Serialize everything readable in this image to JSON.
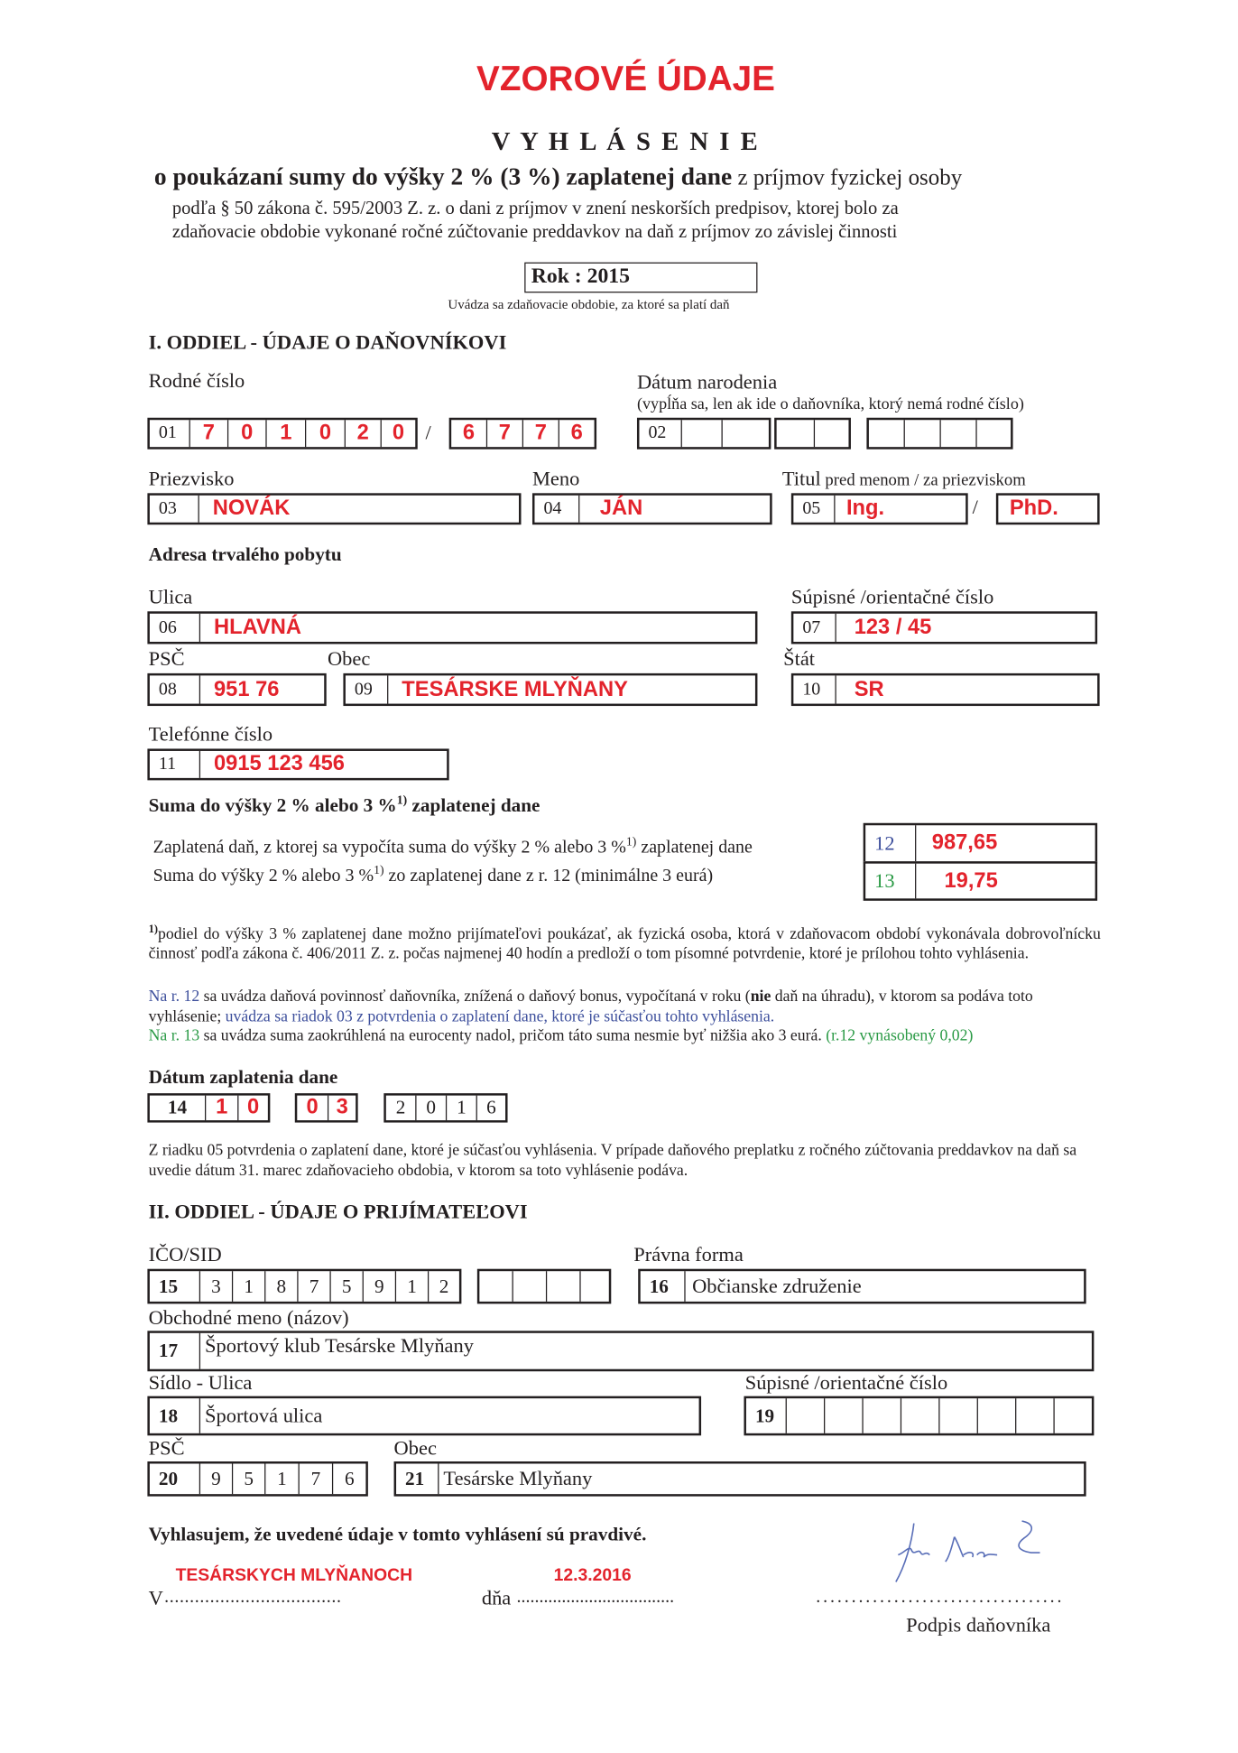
{
  "header": {
    "watermark": "VZOROVÉ ÚDAJE",
    "title": "V Y H L Á S E N I E",
    "subtitle_bold": "o poukázaní sumy do výšky 2 % (3 %) zaplatenej dane",
    "subtitle_rest": " z príjmov fyzickej osoby",
    "legal_1": "podľa § 50 zákona č. 595/2003 Z. z. o dani z príjmov v znení neskorších predpisov, ktorej bolo za",
    "legal_2": "zdaňovacie obdobie vykonané ročné zúčtovanie preddavkov na daň z príjmov zo závislej činnosti",
    "year": "Rok : 2015",
    "year_caption": "Uvádza sa zdaňovacie obdobie, za ktoré sa platí daň"
  },
  "section1": {
    "heading": "I. ODDIEL - ÚDAJE O DAŇOVNÍKOVI",
    "rodne_cislo_label": "Rodné číslo",
    "datum_label": "Dátum  narodenia",
    "datum_note": "(vypĺňa sa, len ak ide o daňovníka, ktorý nemá  rodné číslo)",
    "f01": {
      "num": "01",
      "digits": [
        "7",
        "0",
        "1",
        "0",
        "2",
        "0"
      ],
      "digits2": [
        "6",
        "7",
        "7",
        "6"
      ],
      "slash": "/"
    },
    "f02": {
      "num": "02"
    },
    "priezvisko_label": "Priezvisko",
    "meno_label": "Meno",
    "titul_label": "Titul",
    "titul_note": " pred menom / za priezviskom",
    "f03": {
      "num": "03",
      "value": "NOVÁK"
    },
    "f04": {
      "num": "04",
      "value": "JÁN"
    },
    "f05": {
      "num": "05",
      "value": "Ing.",
      "slash": "/",
      "after": "PhD."
    },
    "address_heading": "Adresa trvalého pobytu",
    "ulica_label": "Ulica",
    "supisne_label": "Súpisné /orientačné číslo",
    "f06": {
      "num": "06",
      "value": "HLAVNÁ"
    },
    "f07": {
      "num": "07",
      "value": "123 / 45"
    },
    "psc_label": "PSČ",
    "obec_label": "Obec",
    "stat_label": "Štát",
    "f08": {
      "num": "08",
      "value": "951 76"
    },
    "f09": {
      "num": "09",
      "value": "TESÁRSKE  MLYŇANY"
    },
    "f10": {
      "num": "10",
      "value": "SR"
    },
    "telefon_label": "Telefónne číslo",
    "f11": {
      "num": "11",
      "value": "0915 123 456"
    },
    "suma_heading": "Suma do výšky 2 % alebo 3 %",
    "sup": "1)",
    "suma_heading_end": " zaplatenej dane",
    "r12_text": "Zaplatená daň, z ktorej sa vypočíta suma do výšky 2 % alebo 3 %",
    "r12_text_end": " zaplatenej dane",
    "r12_num": "12",
    "r12_value": "987,65",
    "r13_text": "Suma do výšky 2 % alebo 3 %",
    "r13_text_end": " zo zaplatenej dane z r. 12 (minimálne 3 eurá)",
    "r13_num": "13",
    "r13_value": "19,75",
    "footnote": "podiel do výšky 3 % zaplatenej dane možno prijímateľovi poukázať, ak fyzická osoba, ktorá v zdaňovacom období vykonávala dobrovoľnícku činnosť podľa zákona č. 406/2011 Z. z. počas najmenej 40 hodín a predloží o tom písomné potvrdenie, ktoré je prílohou tohto vyhlásenia.",
    "note12_a": "Na r. 12",
    "note12_b": " sa uvádza daňová povinnosť daňovníka, znížená o daňový bonus, vypočítaná v roku (",
    "note12_bold": "nie",
    "note12_c": " daň na úhradu), v ktorom sa podáva toto vyhlásenie; ",
    "note12_d": "uvádza sa riadok 03 z potvrdenia o zaplatení dane, ktoré je súčasťou tohto vyhlásenia.",
    "note13_a": "Na r. 13",
    "note13_b": " sa uvádza suma zaokrúhlená na eurocenty nadol, pričom táto suma nesmie byť nižšia ako 3 eurá. ",
    "note13_c": "(r.12 vynásobený 0,02)",
    "datum_zaplatenia_heading": "Dátum zaplatenia dane",
    "f14": {
      "num": "14",
      "day": [
        "1",
        "0"
      ],
      "month": [
        "0",
        "3"
      ],
      "year": [
        "2",
        "0",
        "1",
        "6"
      ]
    },
    "datum_note_text": "Z riadku 05 potvrdenia o zaplatení dane, ktoré je súčasťou vyhlásenia. V prípade daňového preplatku z ročného zúčtovania preddavkov na daň sa uvedie dátum 31. marec zdaňovacieho obdobia, v ktorom sa toto vyhlásenie podáva."
  },
  "section2": {
    "heading": "II. ODDIEL - ÚDAJE O PRIJÍMATEĽOVI",
    "ico_label": "IČO/SID",
    "pravna_label": "Právna forma",
    "f15": {
      "num": "15",
      "digits": [
        "3",
        "1",
        "8",
        "7",
        "5",
        "9",
        "1",
        "2"
      ]
    },
    "f16": {
      "num": "16",
      "value": "Občianske združenie"
    },
    "obchodne_label": "Obchodné meno (názov)",
    "f17": {
      "num": "17",
      "value": "Športový klub Tesárske Mlyňany"
    },
    "sidlo_label": "Sídlo - Ulica",
    "supisne_label": "Súpisné /orientačné číslo",
    "f18": {
      "num": "18",
      "value": "Športová ulica"
    },
    "f19": {
      "num": "19"
    },
    "psc_label": "PSČ",
    "obec_label": "Obec",
    "f20": {
      "num": "20",
      "digits": [
        "9",
        "5",
        "1",
        "7",
        "6"
      ]
    },
    "f21": {
      "num": "21",
      "value": "Tesárske Mlyňany"
    }
  },
  "declaration": {
    "text": "Vyhlasujem, že uvedené údaje v tomto vyhlásení sú pravdivé.",
    "v_label": "V",
    "place": "TESÁRSKYCH MLYŇANOCH",
    "dna_label": "dňa",
    "date": "12.3.2016",
    "dots": "...................................",
    "signature_label": "Podpis daňovníka",
    "signature": "Jan Novák"
  },
  "colors": {
    "red": "#e3232c",
    "blue": "#3d4f9c",
    "green": "#2a9a45"
  }
}
